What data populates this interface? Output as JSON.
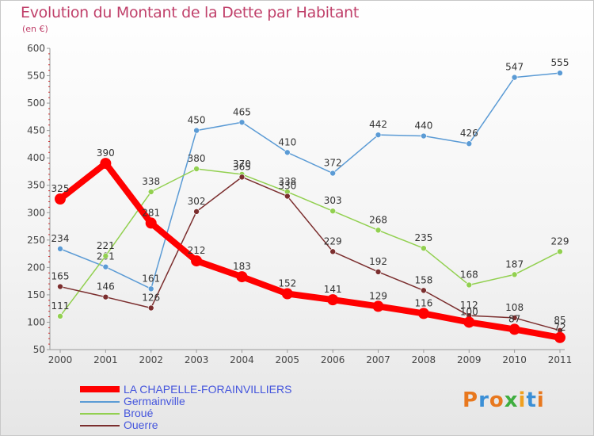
{
  "title": "Evolution du Montant de la Dette par Habitant",
  "unit": "(en €)",
  "logo": {
    "text": "Proxiti",
    "colors": [
      "#e8781e",
      "#3b8fd6",
      "#e8781e",
      "#3fae3f",
      "#f0a020",
      "#3b8fd6",
      "#e8781e"
    ]
  },
  "chart_data": {
    "type": "line",
    "x": [
      "2000",
      "2001",
      "2002",
      "2003",
      "2004",
      "2005",
      "2006",
      "2007",
      "2008",
      "2009",
      "2010",
      "2011"
    ],
    "ylim": [
      50,
      600
    ],
    "yticks": [
      50,
      100,
      150,
      200,
      250,
      300,
      350,
      400,
      450,
      500,
      550,
      600
    ],
    "grid": false,
    "legend_position": "bottom-left",
    "series": [
      {
        "name": "Germainville",
        "color": "#5b9bd5",
        "values": [
          234,
          201,
          161,
          450,
          465,
          410,
          372,
          442,
          440,
          426,
          547,
          555
        ]
      },
      {
        "name": "Broué",
        "color": "#92d050",
        "values": [
          111,
          221,
          338,
          380,
          370,
          338,
          303,
          268,
          235,
          168,
          187,
          229
        ]
      },
      {
        "name": "Ouerre",
        "color": "#7b2e2e",
        "values": [
          165,
          146,
          126,
          302,
          365,
          330,
          229,
          192,
          158,
          112,
          108,
          85
        ]
      },
      {
        "name": "LA CHAPELLE-FORAINVILLIERS",
        "color": "#ff0000",
        "values": [
          325,
          390,
          281,
          212,
          183,
          152,
          141,
          129,
          116,
          100,
          87,
          72
        ]
      }
    ]
  }
}
